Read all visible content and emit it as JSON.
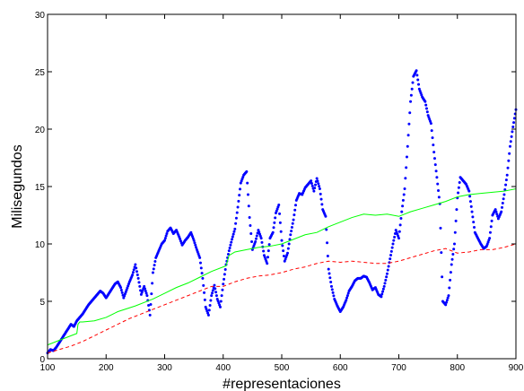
{
  "chart_data": {
    "type": "scatter",
    "xlabel": "#representaciones",
    "ylabel": "Milisegundos",
    "xlim": [
      100,
      900
    ],
    "ylim": [
      0,
      30
    ],
    "grid": false,
    "xticks": [
      100,
      200,
      300,
      400,
      500,
      600,
      700,
      800,
      900
    ],
    "yticks": [
      0,
      5,
      10,
      15,
      20,
      25,
      30
    ],
    "series": [
      {
        "style": "points",
        "color": "#0000ff",
        "x": [
          100,
          105,
          110,
          115,
          120,
          125,
          130,
          135,
          140,
          145,
          150,
          155,
          160,
          165,
          170,
          175,
          180,
          185,
          190,
          195,
          200,
          205,
          210,
          215,
          220,
          225,
          230,
          235,
          240,
          245,
          250,
          255,
          260,
          265,
          270,
          275,
          280,
          285,
          290,
          295,
          300,
          305,
          310,
          315,
          320,
          325,
          330,
          335,
          340,
          345,
          350,
          355,
          360,
          365,
          370,
          375,
          380,
          385,
          390,
          395,
          400,
          405,
          410,
          415,
          420,
          425,
          430,
          435,
          440,
          445,
          450,
          455,
          460,
          465,
          470,
          475,
          480,
          485,
          490,
          495,
          500,
          505,
          510,
          515,
          520,
          525,
          530,
          535,
          540,
          545,
          550,
          555,
          560,
          565,
          570,
          575,
          580,
          585,
          590,
          595,
          600,
          605,
          610,
          615,
          620,
          625,
          630,
          635,
          640,
          645,
          650,
          655,
          660,
          665,
          670,
          675,
          680,
          685,
          690,
          695,
          700,
          705,
          710,
          715,
          720,
          725,
          730,
          735,
          740,
          745,
          750,
          755,
          760,
          765,
          770,
          775,
          780,
          785,
          790,
          795,
          800,
          805,
          810,
          815,
          820,
          825,
          830,
          835,
          840,
          845,
          850,
          855,
          860,
          865,
          870,
          875,
          880,
          885,
          890,
          895,
          900
        ],
        "y": [
          0.5,
          0.8,
          0.7,
          1.0,
          1.4,
          1.8,
          2.2,
          2.6,
          3.0,
          2.8,
          3.3,
          3.6,
          3.9,
          4.3,
          4.7,
          5.0,
          5.3,
          5.6,
          5.9,
          5.7,
          5.3,
          5.7,
          6.1,
          6.5,
          6.7,
          6.2,
          5.3,
          6.0,
          6.7,
          7.3,
          8.2,
          7.0,
          5.6,
          6.3,
          5.5,
          3.8,
          7.5,
          8.8,
          9.4,
          10.0,
          10.3,
          11.1,
          11.4,
          10.9,
          11.2,
          10.6,
          9.9,
          10.3,
          10.6,
          11.0,
          10.3,
          9.5,
          8.8,
          7.0,
          4.5,
          3.8,
          5.5,
          6.4,
          5.2,
          4.5,
          6.5,
          8.2,
          9.4,
          10.4,
          11.3,
          13.2,
          15.3,
          16.0,
          16.3,
          12.3,
          9.5,
          10.2,
          11.2,
          10.5,
          9.0,
          8.3,
          10.5,
          11.0,
          12.7,
          13.4,
          10.3,
          8.5,
          9.2,
          10.8,
          12.1,
          13.8,
          14.4,
          14.3,
          14.9,
          15.2,
          15.5,
          14.6,
          15.7,
          14.8,
          13.0,
          12.4,
          7.8,
          6.3,
          5.2,
          4.6,
          4.1,
          4.5,
          5.1,
          5.9,
          6.3,
          6.8,
          7.0,
          7.0,
          7.2,
          7.1,
          6.6,
          6.0,
          6.2,
          5.6,
          5.4,
          6.3,
          7.4,
          8.7,
          10.0,
          11.2,
          10.5,
          12.8,
          14.8,
          18.5,
          22.4,
          24.6,
          25.1,
          23.5,
          22.8,
          22.4,
          21.2,
          20.5,
          18.0,
          15.8,
          13.5,
          5.0,
          4.7,
          5.5,
          8.2,
          10.0,
          14.0,
          15.8,
          15.5,
          15.2,
          14.6,
          12.8,
          11.0,
          10.5,
          10.0,
          9.6,
          9.8,
          10.5,
          12.5,
          13.0,
          12.2,
          12.8,
          14.3,
          16.0,
          18.5,
          20.2,
          21.7
        ]
      },
      {
        "style": "solid-line",
        "color": "#00ff00",
        "x": [
          100,
          120,
          140,
          150,
          152,
          155,
          160,
          180,
          200,
          220,
          250,
          280,
          300,
          320,
          340,
          360,
          380,
          400,
          405,
          410,
          420,
          440,
          460,
          480,
          500,
          520,
          540,
          560,
          580,
          600,
          620,
          640,
          660,
          680,
          700,
          720,
          740,
          760,
          780,
          800,
          820,
          840,
          860,
          880,
          900
        ],
        "y": [
          1.2,
          1.6,
          2.0,
          2.2,
          3.0,
          3.2,
          3.2,
          3.3,
          3.6,
          4.1,
          4.6,
          5.2,
          5.7,
          6.2,
          6.6,
          7.1,
          7.6,
          8.0,
          8.1,
          9.0,
          9.3,
          9.5,
          9.7,
          9.8,
          10.0,
          10.4,
          10.8,
          11.0,
          11.5,
          11.9,
          12.3,
          12.6,
          12.5,
          12.6,
          12.4,
          12.8,
          13.1,
          13.4,
          13.7,
          14.1,
          14.3,
          14.4,
          14.5,
          14.6,
          14.8
        ]
      },
      {
        "style": "dashed-line",
        "color": "#ff0000",
        "x": [
          100,
          120,
          140,
          160,
          180,
          200,
          220,
          240,
          260,
          280,
          300,
          320,
          340,
          360,
          380,
          400,
          420,
          440,
          460,
          480,
          500,
          520,
          540,
          560,
          580,
          600,
          620,
          640,
          660,
          680,
          700,
          720,
          740,
          760,
          780,
          800,
          820,
          840,
          860,
          880,
          900
        ],
        "y": [
          0.5,
          0.8,
          1.1,
          1.5,
          2.0,
          2.5,
          3.0,
          3.5,
          3.9,
          4.3,
          4.7,
          5.1,
          5.5,
          5.9,
          6.3,
          6.3,
          6.7,
          7.0,
          7.2,
          7.3,
          7.5,
          7.8,
          8.0,
          8.3,
          8.5,
          8.4,
          8.5,
          8.4,
          8.3,
          8.3,
          8.5,
          8.8,
          9.1,
          9.4,
          9.6,
          9.2,
          9.3,
          9.5,
          9.5,
          9.7,
          10.0
        ]
      }
    ]
  }
}
